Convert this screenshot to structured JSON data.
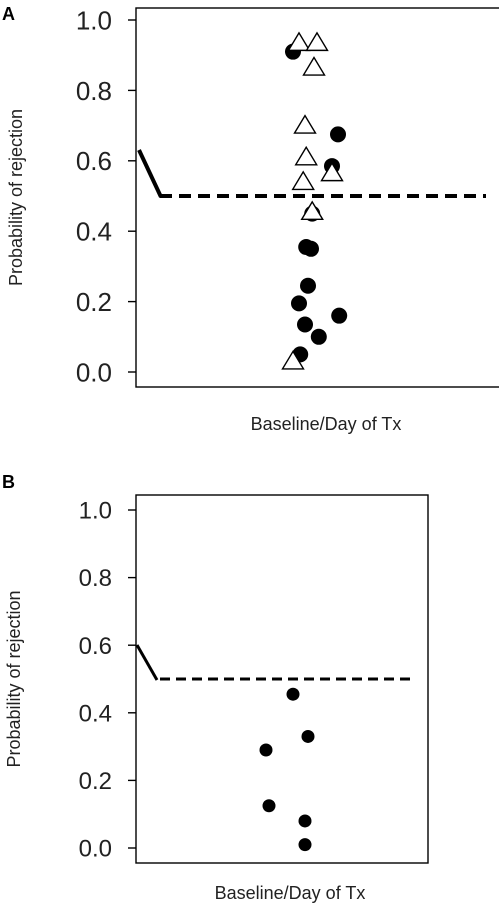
{
  "chart_data": [
    {
      "panel": "A",
      "type": "scatter",
      "xlabel": "Baseline/Day of Tx",
      "ylabel": "Probability of rejection",
      "ylim": [
        0,
        1
      ],
      "yticks": [
        "0.0",
        "0.2",
        "0.4",
        "0.6",
        "0.8",
        "1.0"
      ],
      "threshold": 0.5,
      "grid": false,
      "series": [
        {
          "marker": "filled-circle",
          "color": "#000000",
          "points": [
            {
              "x": -0.2,
              "y": 0.91
            },
            {
              "x": 0.55,
              "y": 0.675
            },
            {
              "x": 0.45,
              "y": 0.585
            },
            {
              "x": 0.12,
              "y": 0.45
            },
            {
              "x": 0.02,
              "y": 0.355
            },
            {
              "x": 0.1,
              "y": 0.35
            },
            {
              "x": 0.05,
              "y": 0.245
            },
            {
              "x": -0.1,
              "y": 0.195
            },
            {
              "x": 0.57,
              "y": 0.16
            },
            {
              "x": 0.0,
              "y": 0.135
            },
            {
              "x": 0.23,
              "y": 0.1
            },
            {
              "x": -0.08,
              "y": 0.05
            }
          ]
        },
        {
          "marker": "open-triangle",
          "color": "#000000",
          "points": [
            {
              "x": -0.1,
              "y": 0.935
            },
            {
              "x": 0.2,
              "y": 0.935
            },
            {
              "x": 0.15,
              "y": 0.865
            },
            {
              "x": 0.0,
              "y": 0.7
            },
            {
              "x": 0.02,
              "y": 0.61
            },
            {
              "x": 0.45,
              "y": 0.565
            },
            {
              "x": -0.03,
              "y": 0.54
            },
            {
              "x": 0.12,
              "y": 0.455
            },
            {
              "x": -0.2,
              "y": 0.03
            }
          ]
        }
      ]
    },
    {
      "panel": "B",
      "type": "scatter",
      "xlabel": "Baseline/Day of Tx",
      "ylabel": "Probability of rejection",
      "ylim": [
        0,
        1
      ],
      "yticks": [
        "0.0",
        "0.2",
        "0.4",
        "0.6",
        "0.8",
        "1.0"
      ],
      "threshold": 0.5,
      "grid": false,
      "series": [
        {
          "marker": "filled-circle",
          "color": "#000000",
          "points": [
            {
              "x": 0.05,
              "y": 0.455
            },
            {
              "x": 0.3,
              "y": 0.33
            },
            {
              "x": -0.4,
              "y": 0.29
            },
            {
              "x": -0.35,
              "y": 0.125
            },
            {
              "x": 0.25,
              "y": 0.08
            },
            {
              "x": 0.25,
              "y": 0.01
            }
          ]
        }
      ]
    }
  ]
}
